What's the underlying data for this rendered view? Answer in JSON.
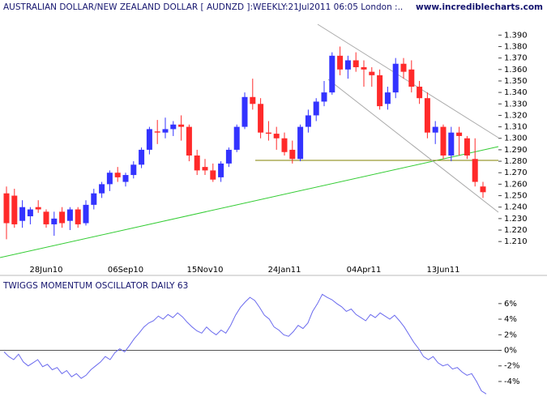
{
  "chart_data": [
    {
      "type": "candlestick",
      "title": "AUSTRALIAN DOLLAR/NEW ZEALAND DOLLAR [ AUDNZD ]:WEEKLY:21Jul2011 06:05 London :..",
      "source": "www.incrediblecharts.com",
      "categories": [
        null,
        null,
        null,
        null,
        null,
        "28Jun10",
        null,
        null,
        null,
        null,
        null,
        null,
        null,
        null,
        null,
        "06Sep10",
        null,
        null,
        null,
        null,
        null,
        null,
        null,
        null,
        null,
        "15Nov10",
        null,
        null,
        null,
        null,
        null,
        null,
        null,
        null,
        null,
        "24Jan11",
        null,
        null,
        null,
        null,
        null,
        null,
        null,
        null,
        null,
        "04Apr11",
        null,
        null,
        null,
        null,
        null,
        null,
        null,
        null,
        null,
        "13Jun11",
        null,
        null,
        null,
        null,
        null
      ],
      "open": [
        1.252,
        1.25,
        1.228,
        1.232,
        1.24,
        1.236,
        1.225,
        1.236,
        1.228,
        1.238,
        1.226,
        1.242,
        1.252,
        1.26,
        1.27,
        1.262,
        1.268,
        1.277,
        1.29,
        1.306,
        1.305,
        1.308,
        1.312,
        1.31,
        1.285,
        1.275,
        1.272,
        1.266,
        1.278,
        1.29,
        1.31,
        1.336,
        1.33,
        1.305,
        1.304,
        1.3,
        1.29,
        1.282,
        1.31,
        1.32,
        1.332,
        1.34,
        1.372,
        1.36,
        1.368,
        1.362,
        1.358,
        1.355,
        1.33,
        1.34,
        1.365,
        1.36,
        1.345,
        1.335,
        1.305,
        1.31,
        1.285,
        1.305,
        1.3,
        1.282,
        1.258
      ],
      "high": [
        1.258,
        1.256,
        1.246,
        1.24,
        1.246,
        1.238,
        1.236,
        1.24,
        1.24,
        1.24,
        1.246,
        1.256,
        1.262,
        1.272,
        1.275,
        1.27,
        1.28,
        1.292,
        1.31,
        1.316,
        1.318,
        1.315,
        1.32,
        1.312,
        1.29,
        1.282,
        1.278,
        1.28,
        1.292,
        1.312,
        1.34,
        1.352,
        1.335,
        1.315,
        1.31,
        1.305,
        1.298,
        1.312,
        1.325,
        1.335,
        1.35,
        1.375,
        1.38,
        1.372,
        1.375,
        1.368,
        1.362,
        1.36,
        1.345,
        1.37,
        1.37,
        1.368,
        1.35,
        1.34,
        1.315,
        1.312,
        1.31,
        1.31,
        1.302,
        1.3,
        1.262
      ],
      "low": [
        1.212,
        1.222,
        1.222,
        1.225,
        1.235,
        1.222,
        1.215,
        1.222,
        1.22,
        1.222,
        1.224,
        1.238,
        1.248,
        1.254,
        1.262,
        1.258,
        1.265,
        1.274,
        1.286,
        1.295,
        1.3,
        1.302,
        1.298,
        1.28,
        1.268,
        1.268,
        1.262,
        1.262,
        1.275,
        1.288,
        1.308,
        1.325,
        1.3,
        1.298,
        1.29,
        1.285,
        1.278,
        1.28,
        1.305,
        1.315,
        1.328,
        1.338,
        1.355,
        1.352,
        1.358,
        1.345,
        1.345,
        1.325,
        1.325,
        1.335,
        1.352,
        1.34,
        1.33,
        1.3,
        1.295,
        1.282,
        1.28,
        1.285,
        1.282,
        1.258,
        1.248
      ],
      "close": [
        1.226,
        1.225,
        1.24,
        1.238,
        1.238,
        1.225,
        1.23,
        1.226,
        1.238,
        1.225,
        1.242,
        1.252,
        1.26,
        1.27,
        1.266,
        1.268,
        1.277,
        1.29,
        1.308,
        1.305,
        1.308,
        1.312,
        1.31,
        1.285,
        1.272,
        1.272,
        1.264,
        1.278,
        1.29,
        1.31,
        1.336,
        1.33,
        1.305,
        1.304,
        1.3,
        1.288,
        1.282,
        1.31,
        1.32,
        1.332,
        1.34,
        1.372,
        1.36,
        1.368,
        1.362,
        1.36,
        1.355,
        1.328,
        1.34,
        1.365,
        1.358,
        1.345,
        1.335,
        1.305,
        1.31,
        1.285,
        1.305,
        1.302,
        1.285,
        1.262,
        1.253
      ],
      "up_color": "#3333ff",
      "down_color": "#ff2a2a",
      "ylim": [
        1.196,
        1.41
      ],
      "yticks": [
        {
          "value": 1.21,
          "label": "1.210"
        },
        {
          "value": 1.22,
          "label": "1.220"
        },
        {
          "value": 1.23,
          "label": "1.230"
        },
        {
          "value": 1.24,
          "label": "1.240"
        },
        {
          "value": 1.25,
          "label": "1.250"
        },
        {
          "value": 1.26,
          "label": "1.260"
        },
        {
          "value": 1.27,
          "label": "1.270"
        },
        {
          "value": 1.28,
          "label": "1.280"
        },
        {
          "value": 1.29,
          "label": "1.290"
        },
        {
          "value": 1.3,
          "label": "1.300"
        },
        {
          "value": 1.31,
          "label": "1.310"
        },
        {
          "value": 1.32,
          "label": "1.320"
        },
        {
          "value": 1.33,
          "label": "1.330"
        },
        {
          "value": 1.34,
          "label": "1.340"
        },
        {
          "value": 1.35,
          "label": "1.350"
        },
        {
          "value": 1.36,
          "label": "1.360"
        },
        {
          "value": 1.37,
          "label": "1.370"
        },
        {
          "value": 1.38,
          "label": "1.380"
        },
        {
          "value": 1.39,
          "label": "1.390"
        }
      ]
    },
    {
      "type": "line",
      "title": "TWIGGS MOMENTUM OSCILLATOR DAILY 63",
      "color": "#6a6aee",
      "values": [
        -0.2,
        -0.8,
        -1.2,
        -0.5,
        -1.5,
        -2.0,
        -1.6,
        -1.2,
        -2.1,
        -1.8,
        -2.5,
        -2.2,
        -3.0,
        -2.6,
        -3.4,
        -3.0,
        -3.6,
        -3.2,
        -2.5,
        -2.0,
        -1.5,
        -0.8,
        -1.2,
        -0.3,
        0.2,
        -0.2,
        0.6,
        1.5,
        2.2,
        3.0,
        3.5,
        3.8,
        4.4,
        4.0,
        4.6,
        4.2,
        4.8,
        4.3,
        3.6,
        3.0,
        2.5,
        2.2,
        3.0,
        2.4,
        2.0,
        2.6,
        2.2,
        3.2,
        4.5,
        5.5,
        6.2,
        6.8,
        6.4,
        5.5,
        4.5,
        4.0,
        3.0,
        2.6,
        2.0,
        1.8,
        2.4,
        3.2,
        2.8,
        3.5,
        5.0,
        6.0,
        7.2,
        6.8,
        6.5,
        6.0,
        5.6,
        5.0,
        5.3,
        4.6,
        4.2,
        3.8,
        4.6,
        4.2,
        4.8,
        4.4,
        4.0,
        4.5,
        3.8,
        3.0,
        2.0,
        1.0,
        0.2,
        -0.8,
        -1.2,
        -0.8,
        -1.6,
        -2.0,
        -1.8,
        -2.4,
        -2.2,
        -2.8,
        -3.2,
        -3.0,
        -4.0,
        -5.2,
        -5.6
      ],
      "ylim": [
        -6.5,
        9.1
      ],
      "yticks": [
        {
          "value": -4,
          "label": "-4%"
        },
        {
          "value": -2,
          "label": "-2%"
        },
        {
          "value": 0,
          "label": "0%"
        },
        {
          "value": 2,
          "label": "2%"
        },
        {
          "value": 4,
          "label": "4%"
        },
        {
          "value": 6,
          "label": "6%"
        }
      ],
      "zero_line": true
    }
  ]
}
